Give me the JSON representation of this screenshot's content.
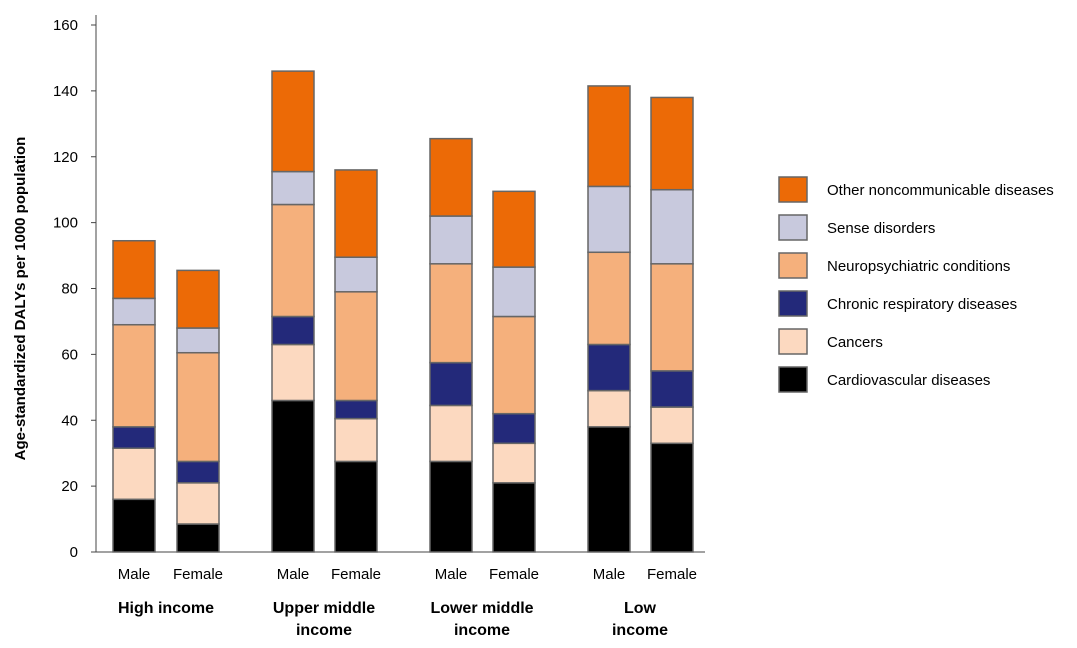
{
  "chart_data": {
    "type": "bar",
    "stacked": true,
    "title": "",
    "xlabel": "",
    "ylabel": "Age-standardized DALYs per 1000 population",
    "ylim": [
      0,
      160
    ],
    "yticks": [
      0,
      20,
      40,
      60,
      80,
      100,
      120,
      140,
      160
    ],
    "grid": false,
    "legend_position": "right",
    "groups": [
      "High income",
      "Upper middle income",
      "Lower middle income",
      "Low income"
    ],
    "categories": [
      "Male",
      "Female",
      "Male",
      "Female",
      "Male",
      "Female",
      "Male",
      "Female"
    ],
    "series": [
      {
        "name": "Cardiovascular diseases",
        "color": "#000000",
        "values": [
          16,
          8.5,
          46,
          27.5,
          27.5,
          21,
          38,
          33
        ]
      },
      {
        "name": "Cancers",
        "color": "#fcd9c0",
        "values": [
          15.5,
          12.5,
          17,
          13,
          17,
          12,
          11,
          11
        ]
      },
      {
        "name": "Chronic respiratory diseases",
        "color": "#23297a",
        "values": [
          6.5,
          6.5,
          8.5,
          5.5,
          13,
          9,
          14,
          11
        ]
      },
      {
        "name": "Neuropsychiatric conditions",
        "color": "#f5b07c",
        "values": [
          31,
          33,
          34,
          33,
          30,
          29.5,
          28,
          32.5
        ]
      },
      {
        "name": "Sense disorders",
        "color": "#c8c9dd",
        "values": [
          8,
          7.5,
          10,
          10.5,
          14.5,
          15,
          20,
          22.5
        ]
      },
      {
        "name": "Other noncommunicable diseases",
        "color": "#ec6a06",
        "values": [
          17.5,
          17.5,
          30.5,
          26.5,
          23.5,
          23,
          30.5,
          28
        ]
      }
    ]
  }
}
